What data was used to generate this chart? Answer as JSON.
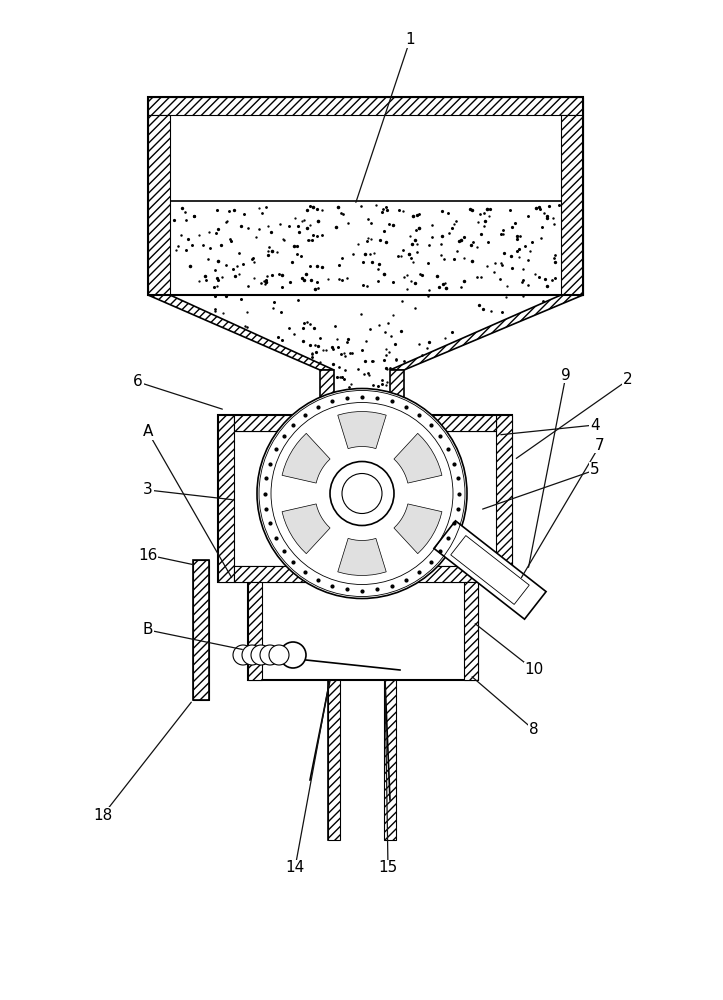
{
  "background_color": "#ffffff",
  "fig_width": 7.23,
  "fig_height": 10.0,
  "dpi": 100
}
